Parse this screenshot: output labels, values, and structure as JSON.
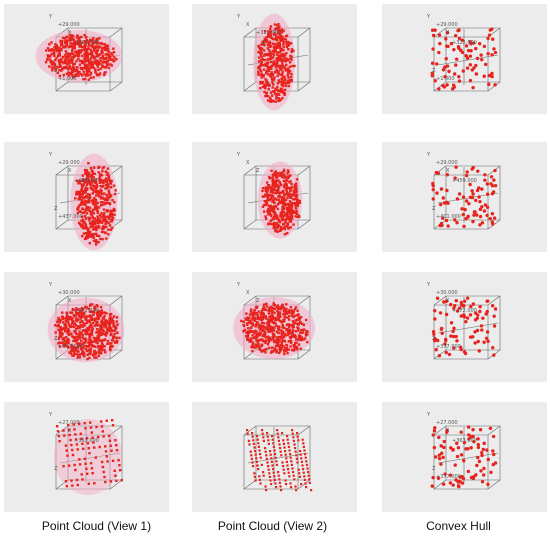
{
  "column_labels": [
    "Point Cloud (View 1)",
    "Point Cloud (View 2)",
    "Convex Hull"
  ],
  "rows": [
    {
      "name": "row-1",
      "panels": [
        {
          "kind": "blob",
          "ticks": [
            "Y",
            "+29.000",
            "X",
            "+322.000",
            "Z",
            "+1.000"
          ]
        },
        {
          "kind": "blob",
          "ticks": [
            "Y",
            "X",
            "+322.000",
            "Z"
          ]
        },
        {
          "kind": "hull",
          "ticks": [
            "Y",
            "+29.000",
            "X",
            "+322.000",
            "Z",
            "+1.000"
          ]
        }
      ]
    },
    {
      "name": "row-2",
      "panels": [
        {
          "kind": "blob",
          "ticks": [
            "Y",
            "+29.000",
            "X",
            "+459.000",
            "Z",
            "+437.000"
          ]
        },
        {
          "kind": "blob",
          "ticks": [
            "Y",
            "X",
            "Z"
          ]
        },
        {
          "kind": "hull",
          "ticks": [
            "Y",
            "+29.000",
            "X",
            "+459.000",
            "Z",
            "+401.000"
          ]
        }
      ]
    },
    {
      "name": "row-3",
      "panels": [
        {
          "kind": "blob",
          "ticks": [
            "Y",
            "+30.000",
            "X",
            "+372.000",
            "Z",
            "+377.000"
          ]
        },
        {
          "kind": "blob",
          "ticks": [
            "Y",
            "X",
            "Z"
          ]
        },
        {
          "kind": "hull",
          "ticks": [
            "Y",
            "+30.000",
            "X",
            "+372.000",
            "Z",
            "+377.000"
          ]
        }
      ]
    },
    {
      "name": "row-4",
      "panels": [
        {
          "kind": "grid",
          "ticks": [
            "Y",
            "+27.000",
            "X",
            "+363.000",
            "Z"
          ]
        },
        {
          "kind": "stripes",
          "ticks": []
        },
        {
          "kind": "hull",
          "ticks": [
            "Y",
            "+27.000",
            "X",
            "+363.000",
            "Z",
            "+377.000"
          ]
        }
      ]
    }
  ],
  "colors": {
    "background": "#ececec",
    "points": "#e8231d",
    "glow": "#f3a9c4",
    "cube": "#666666"
  }
}
